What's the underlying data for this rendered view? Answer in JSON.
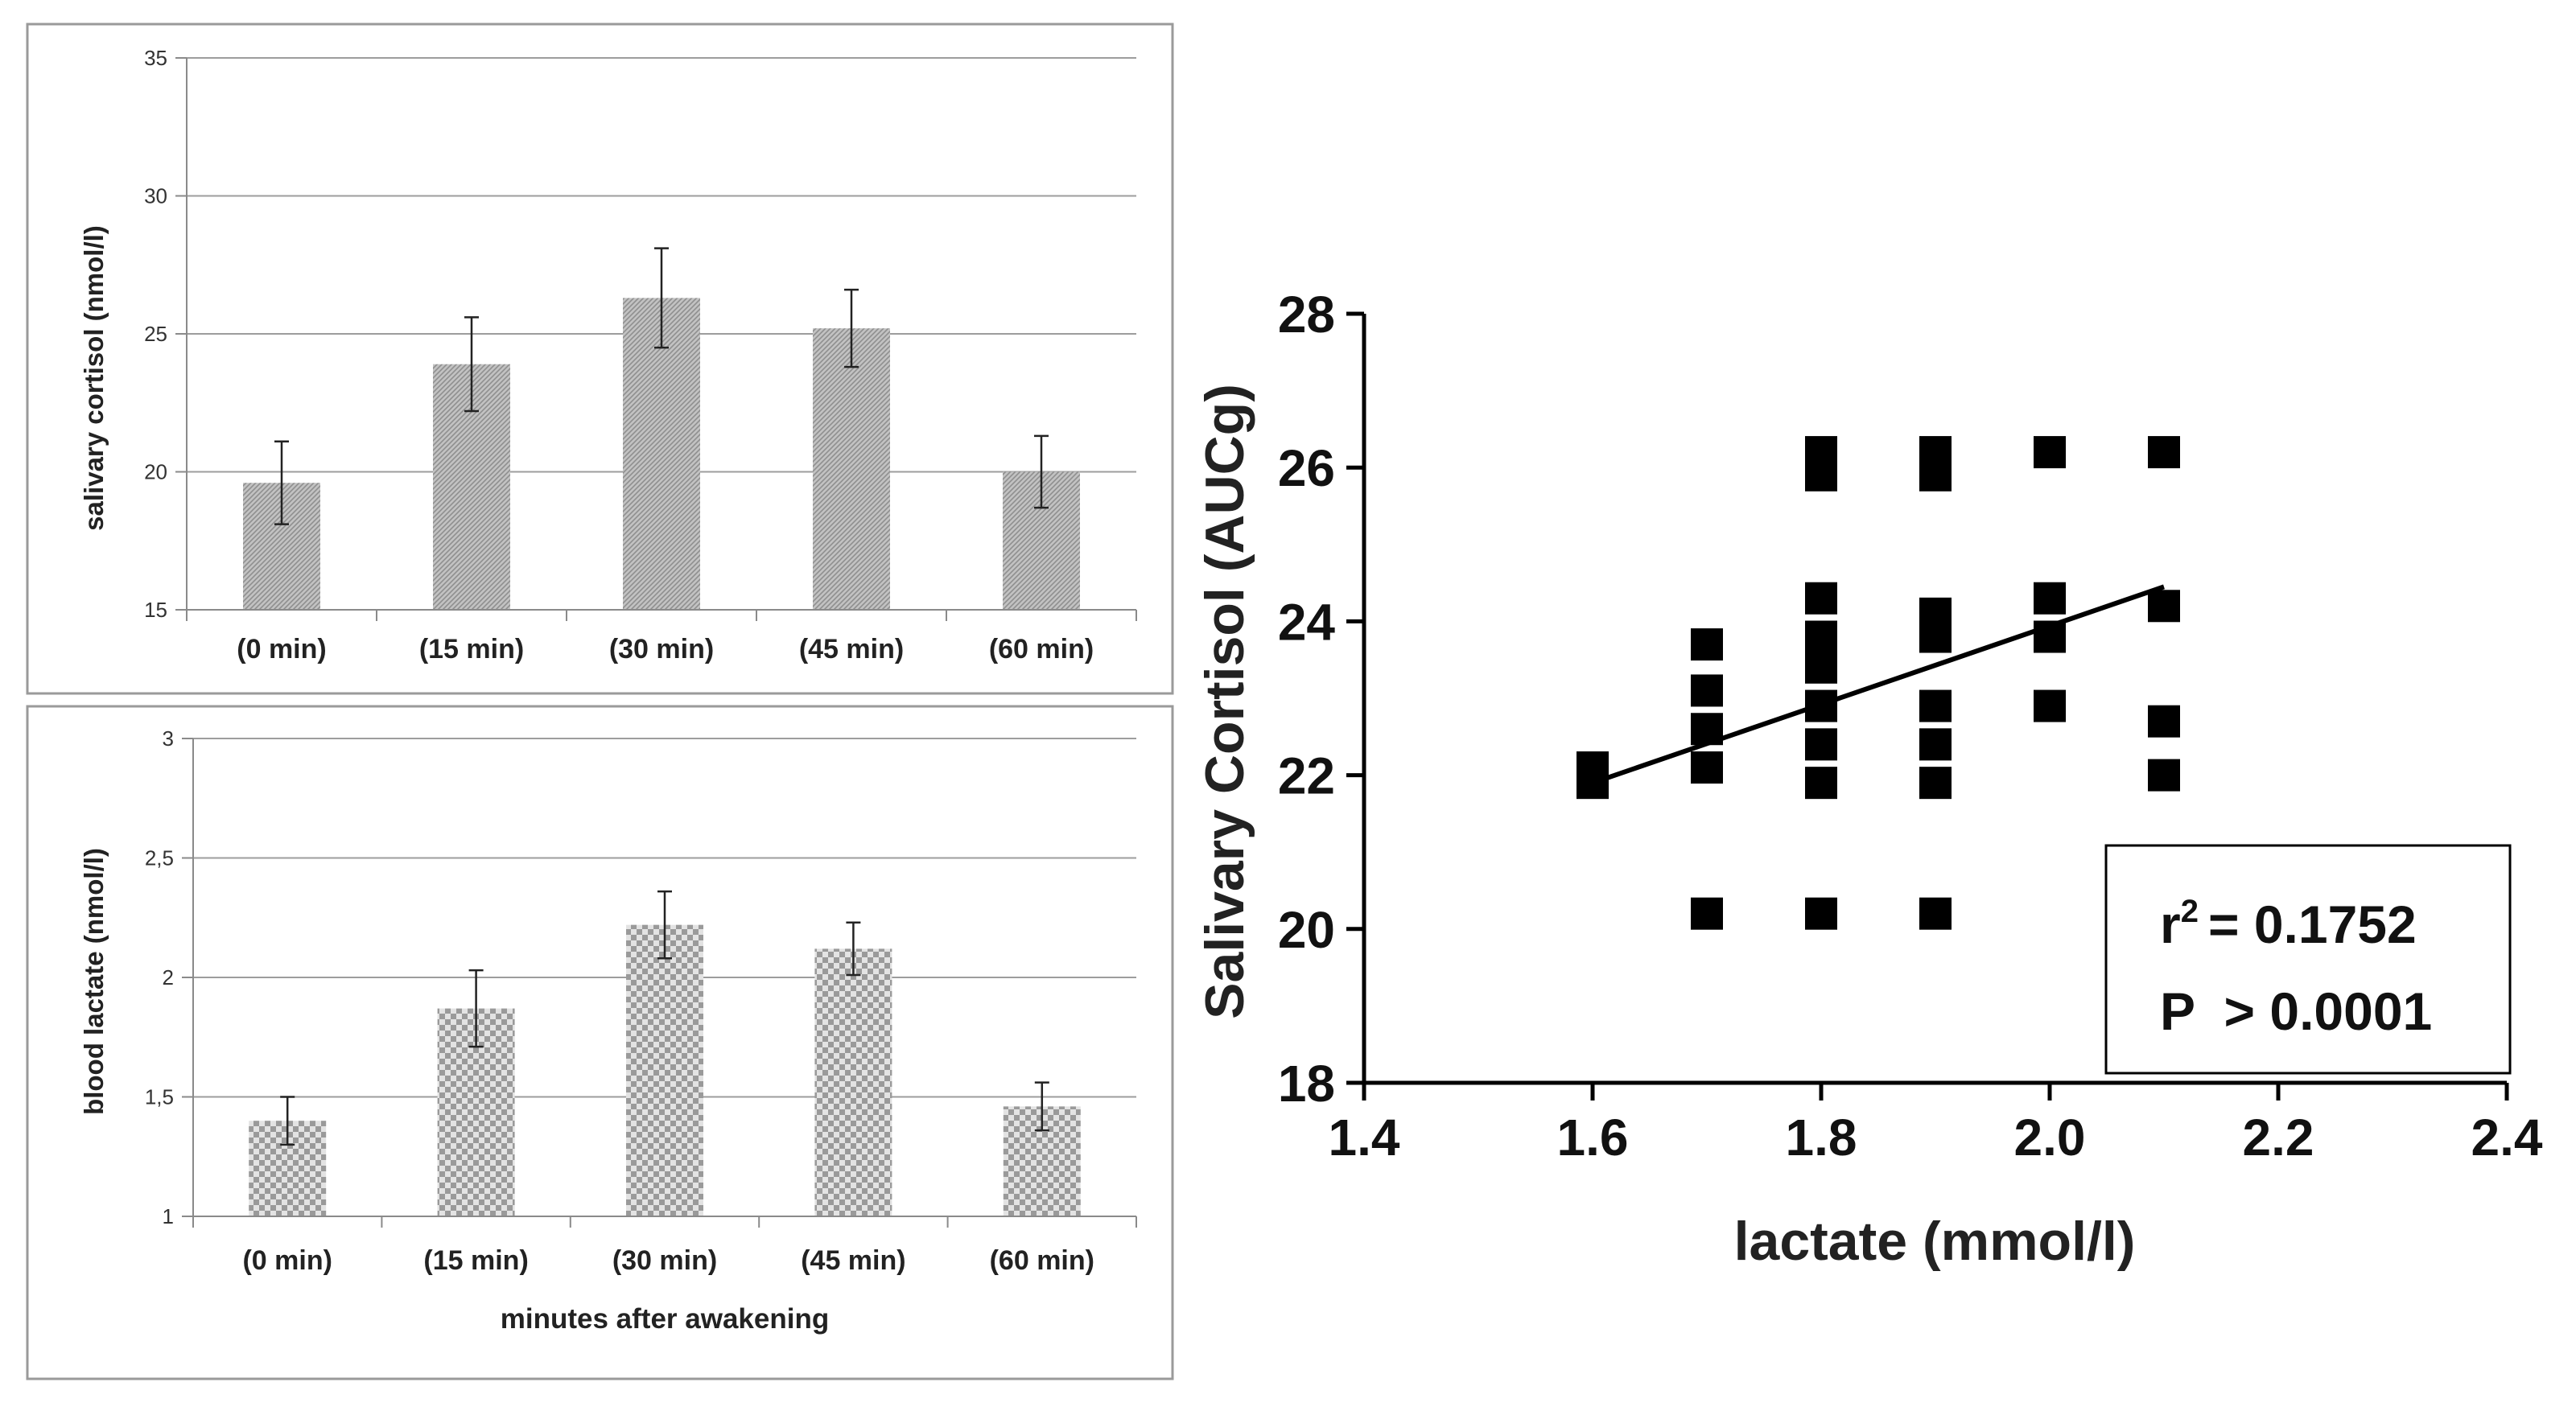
{
  "chart_data": [
    {
      "id": "cortisol_bar",
      "type": "bar",
      "title": "",
      "xlabel": "",
      "ylabel": "salivary cortisol (nmol/l)",
      "categories": [
        "(0 min)",
        "(15 min)",
        "(30 min)",
        "(45 min)",
        "(60 min)"
      ],
      "values": [
        19.6,
        23.9,
        26.3,
        25.2,
        20.0
      ],
      "errors": [
        1.5,
        1.7,
        1.8,
        1.4,
        1.3
      ],
      "ylim": [
        15,
        35
      ],
      "yticks": [
        15,
        20,
        25,
        30,
        35
      ],
      "ytick_labels": [
        "15",
        "20",
        "25",
        "30",
        "35"
      ],
      "grid": true,
      "bar_color": "#b4b4b4"
    },
    {
      "id": "lactate_bar",
      "type": "bar",
      "title": "",
      "xlabel": "minutes after awakening",
      "ylabel": "blood lactate (nmol/l)",
      "categories": [
        "(0 min)",
        "(15 min)",
        "(30 min)",
        "(45 min)",
        "(60 min)"
      ],
      "values": [
        1.4,
        1.87,
        2.22,
        2.12,
        1.46
      ],
      "errors": [
        0.1,
        0.16,
        0.14,
        0.11,
        0.1
      ],
      "ylim": [
        1,
        3
      ],
      "yticks": [
        1,
        1.5,
        2,
        2.5,
        3
      ],
      "ytick_labels": [
        "1",
        "1,5",
        "2",
        "2,5",
        "3"
      ],
      "grid": true,
      "bar_color": "#b9b9b9"
    },
    {
      "id": "scatter",
      "type": "scatter",
      "title": "",
      "xlabel": "lactate (mmol/l)",
      "ylabel": "Salivary Cortisol (AUCg)",
      "xlim": [
        1.4,
        2.4
      ],
      "ylim": [
        18,
        28
      ],
      "xticks": [
        1.4,
        1.6,
        1.8,
        2.0,
        2.2,
        2.4
      ],
      "xtick_labels": [
        "1.4",
        "1.6",
        "1.8",
        "2.0",
        "2.2",
        "2.4"
      ],
      "yticks": [
        18,
        20,
        22,
        24,
        26,
        28
      ],
      "ytick_labels": [
        "18",
        "20",
        "22",
        "24",
        "26",
        "28"
      ],
      "points": [
        [
          1.6,
          21.9
        ],
        [
          1.6,
          22.1
        ],
        [
          1.7,
          20.2
        ],
        [
          1.7,
          22.1
        ],
        [
          1.7,
          22.6
        ],
        [
          1.7,
          23.1
        ],
        [
          1.7,
          23.7
        ],
        [
          1.8,
          20.2
        ],
        [
          1.8,
          21.9
        ],
        [
          1.8,
          22.4
        ],
        [
          1.8,
          22.9
        ],
        [
          1.8,
          23.4
        ],
        [
          1.8,
          23.8
        ],
        [
          1.8,
          24.3
        ],
        [
          1.8,
          25.9
        ],
        [
          1.8,
          26.2
        ],
        [
          1.9,
          20.2
        ],
        [
          1.9,
          21.9
        ],
        [
          1.9,
          22.4
        ],
        [
          1.9,
          22.9
        ],
        [
          1.9,
          23.8
        ],
        [
          1.9,
          24.1
        ],
        [
          1.9,
          25.9
        ],
        [
          1.9,
          26.2
        ],
        [
          2.0,
          22.9
        ],
        [
          2.0,
          23.8
        ],
        [
          2.0,
          24.3
        ],
        [
          2.0,
          26.2
        ],
        [
          2.1,
          22.0
        ],
        [
          2.1,
          22.7
        ],
        [
          2.1,
          24.2
        ],
        [
          2.1,
          26.2
        ]
      ],
      "fit_line": {
        "x": [
          1.6,
          2.1
        ],
        "y": [
          21.9,
          24.45
        ]
      },
      "annotation": {
        "r2_label": "r",
        "r2_superscript": "2",
        "r2_text": "= 0.1752",
        "p_text": "P  > 0.0001"
      }
    }
  ]
}
